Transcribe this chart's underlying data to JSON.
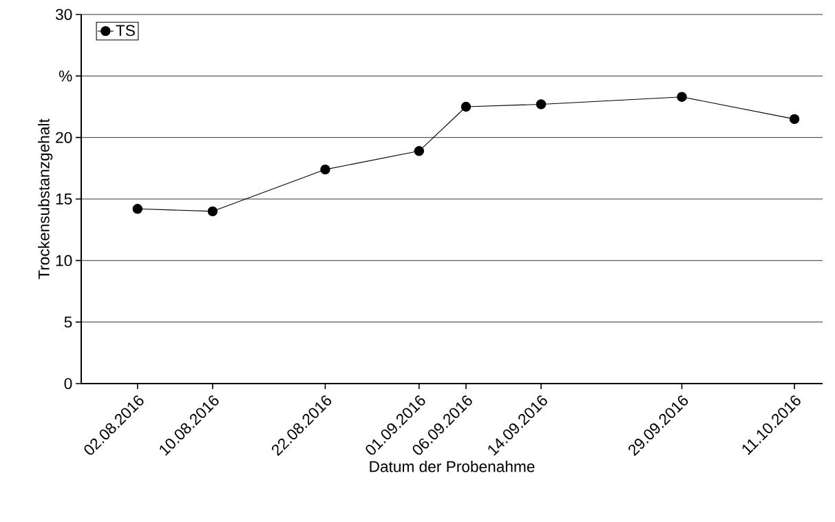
{
  "chart_data": {
    "type": "line",
    "xlabel": "Datum der Probenahme",
    "ylabel": "Trockensubstanzgehalt",
    "x": [
      "2016-08-02",
      "2016-08-10",
      "2016-08-22",
      "2016-09-01",
      "2016-09-06",
      "2016-09-14",
      "2016-09-29",
      "2016-10-11"
    ],
    "series": [
      {
        "name": "TS",
        "color": "#000000",
        "values": [
          14.2,
          14.0,
          17.4,
          18.9,
          22.5,
          22.7,
          23.3,
          21.5
        ]
      }
    ],
    "xlim": [
      "2016-07-27",
      "2016-10-14"
    ],
    "xticks": [
      {
        "value": "2016-08-02",
        "label": "02.08.2016"
      },
      {
        "value": "2016-08-10",
        "label": "10.08.2016"
      },
      {
        "value": "2016-08-22",
        "label": "22.08.2016"
      },
      {
        "value": "2016-09-01",
        "label": "01.09.2016"
      },
      {
        "value": "2016-09-06",
        "label": "06.09.2016"
      },
      {
        "value": "2016-09-14",
        "label": "14.09.2016"
      },
      {
        "value": "2016-09-29",
        "label": "29.09.2016"
      },
      {
        "value": "2016-10-11",
        "label": "11.10.2016"
      }
    ],
    "ylim": [
      0,
      30
    ],
    "yticks": [
      0,
      5,
      10,
      15,
      20,
      {
        "value": 25,
        "label": "%"
      },
      30
    ],
    "grid": "y",
    "legend": "top left",
    "marker": "circle",
    "line_style": "solid"
  }
}
